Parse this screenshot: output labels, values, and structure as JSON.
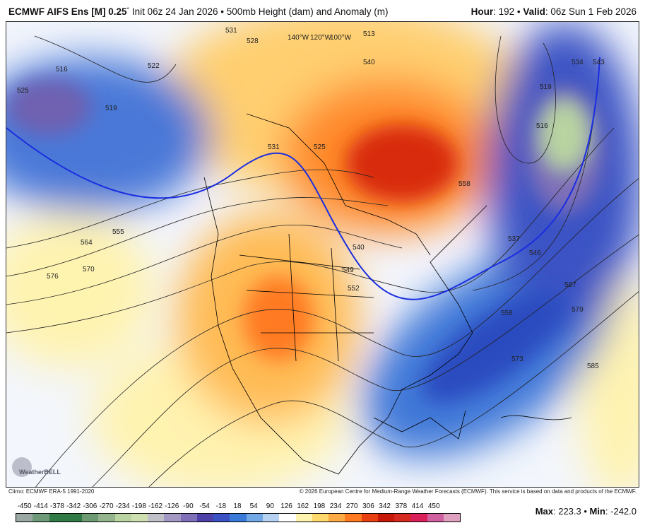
{
  "header": {
    "model": "ECMWF AIFS Ens [M] 0.25",
    "degree": "°",
    "init": " Init 06z 24 Jan 2026 • 500mb Height (dam) and Anomaly (m)",
    "hour_label": "Hour",
    "hour": ": 192 • ",
    "valid_label": "Valid",
    "valid": ": 06z Sun 1 Feb 2026"
  },
  "contour_labels": [
    "531",
    "528",
    "522",
    "516",
    "525",
    "519",
    "555",
    "564",
    "570",
    "576",
    "540",
    "549",
    "552",
    "537",
    "546",
    "567",
    "558",
    "579",
    "573",
    "585",
    "534",
    "543",
    "513",
    "516",
    "519",
    "531",
    "525",
    "558",
    "540",
    "140°W",
    "120°W",
    "100°W"
  ],
  "logo": "WeatherBELL",
  "credits": {
    "climo": "Climo: ECMWF ERA-5 1991-2020",
    "copyright": "© 2026 European Centre for Medium-Range Weather Forecasts (ECMWF). This service is based on data and products of the ECMWF."
  },
  "colorbar": {
    "ticks": [
      "-450",
      "-414",
      "-378",
      "-342",
      "-306",
      "-270",
      "-234",
      "-198",
      "-162",
      "-126",
      "-90",
      "-54",
      "-18",
      "18",
      "54",
      "90",
      "126",
      "162",
      "198",
      "234",
      "270",
      "306",
      "342",
      "378",
      "414",
      "450"
    ],
    "colors": [
      "#9aa8a4",
      "#6f9a7a",
      "#2f7a45",
      "#2f7a45",
      "#6d9a72",
      "#93b48c",
      "#b9d4a0",
      "#cfe0b0",
      "#c0c0c8",
      "#a397c4",
      "#7f6fb8",
      "#4d40a8",
      "#3a52c4",
      "#3a7ad8",
      "#72a8e6",
      "#b6d2f2",
      "#ffffff",
      "#fff3b0",
      "#ffd86e",
      "#ffaa44",
      "#ff7a22",
      "#e84010",
      "#c81808",
      "#d42a20",
      "#d8205a",
      "#d060a0",
      "#e0a0c0"
    ]
  },
  "extremes": {
    "max_label": "Max",
    "max": ": 223.3 • ",
    "min_label": "Min",
    "min": ": -242.0"
  }
}
